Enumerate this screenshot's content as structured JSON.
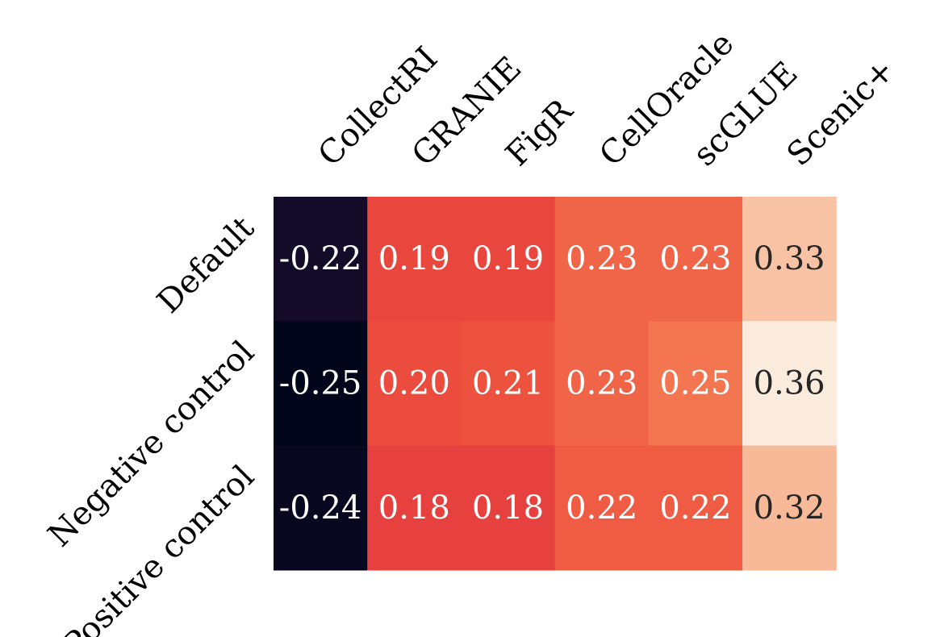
{
  "chart_data": {
    "type": "heatmap",
    "columns": [
      "CollectRI",
      "GRANIE",
      "FigR",
      "CellOracle",
      "scGLUE",
      "Scenic+"
    ],
    "rows": [
      "Default",
      "Negative control",
      "Positive control"
    ],
    "values": [
      [
        -0.22,
        0.19,
        0.19,
        0.23,
        0.23,
        0.33
      ],
      [
        -0.25,
        0.2,
        0.21,
        0.23,
        0.25,
        0.36
      ],
      [
        -0.24,
        0.18,
        0.18,
        0.22,
        0.22,
        0.32
      ]
    ],
    "value_labels": [
      [
        "-0.22",
        "0.19",
        "0.19",
        "0.23",
        "0.23",
        "0.33"
      ],
      [
        "-0.25",
        "0.20",
        "0.21",
        "0.23",
        "0.25",
        "0.36"
      ],
      [
        "-0.24",
        "0.18",
        "0.18",
        "0.22",
        "0.22",
        "0.32"
      ]
    ],
    "colormap": "rocket",
    "vmin": -0.25,
    "vmax": 0.36,
    "colorbar": false,
    "column_label_rotation": 45,
    "row_label_rotation": 45,
    "grid": false
  }
}
